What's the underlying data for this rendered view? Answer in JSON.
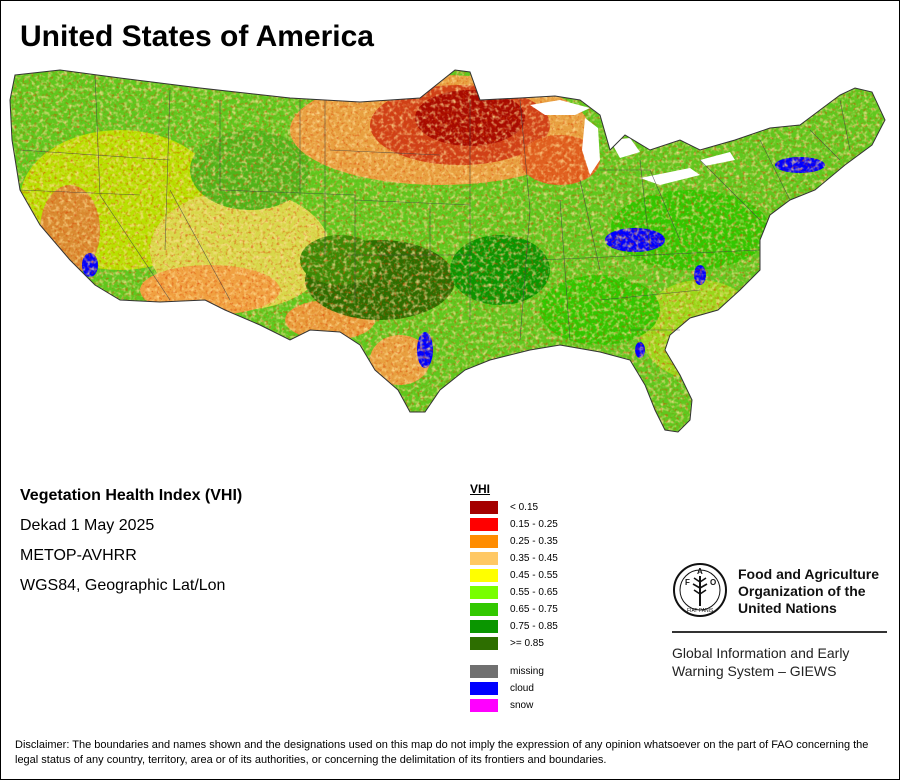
{
  "title": "United States of America",
  "info": {
    "heading": "Vegetation Health Index (VHI)",
    "dekad": "Dekad 1 May 2025",
    "sensor": "METOP-AVHRR",
    "projection": "WGS84, Geographic Lat/Lon"
  },
  "legend": {
    "title": "VHI",
    "classes": [
      {
        "label": "< 0.15",
        "color": "#a50000"
      },
      {
        "label": "0.15 - 0.25",
        "color": "#ff0000"
      },
      {
        "label": "0.25 - 0.35",
        "color": "#ff8c00"
      },
      {
        "label": "0.35 - 0.45",
        "color": "#ffc864"
      },
      {
        "label": "0.45 - 0.55",
        "color": "#ffff00"
      },
      {
        "label": "0.55 - 0.65",
        "color": "#78ff00"
      },
      {
        "label": "0.65 - 0.75",
        "color": "#32c800"
      },
      {
        "label": "0.75 - 0.85",
        "color": "#0a9600"
      },
      {
        "label": ">= 0.85",
        "color": "#2d6e00"
      }
    ],
    "other": [
      {
        "label": "missing",
        "color": "#707070"
      },
      {
        "label": "cloud",
        "color": "#0000ff"
      },
      {
        "label": "snow",
        "color": "#ff00ff"
      }
    ]
  },
  "logo": {
    "letters": "FAO",
    "motto": "FIAT PANIS",
    "org_line1": "Food and Agriculture",
    "org_line2": "Organization of the",
    "org_line3": "United Nations"
  },
  "giews": {
    "line1": "Global Information and Early",
    "line2": "Warning System – GIEWS"
  },
  "disclaimer": "Disclaimer: The boundaries and names shown and the designations used on this map do not imply the expression of any opinion whatsoever on the part of FAO concerning the legal status of any country, territory, area or of its authorities, or concerning the delimitation of its frontiers and boundaries."
}
